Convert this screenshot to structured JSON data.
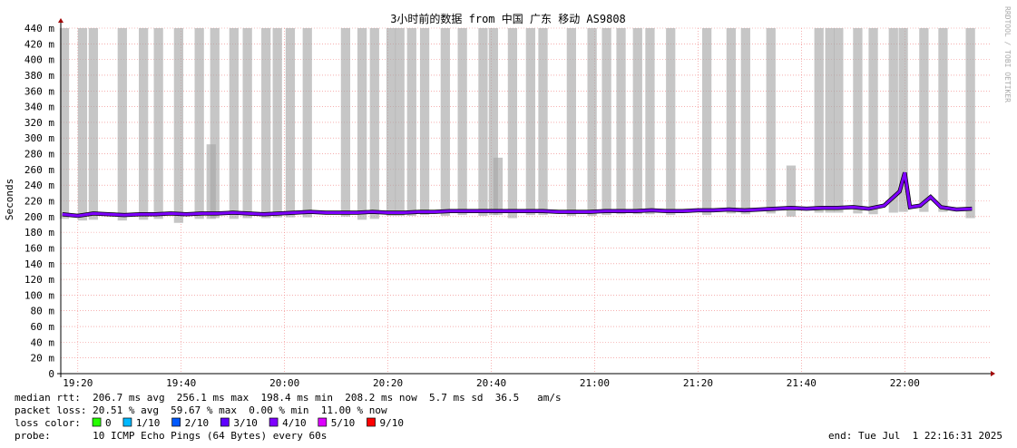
{
  "chart_data": {
    "type": "smokeping",
    "title": "3小时前的数据 from 中国 广东 移动 AS9808",
    "y_label": "Seconds",
    "watermark": "RRDTOOL / TOBI OETIKER",
    "xlim": [
      1156.7,
      1336.8
    ],
    "xticks": [
      {
        "value": 1160,
        "label": "19:20"
      },
      {
        "value": 1180,
        "label": "19:40"
      },
      {
        "value": 1200,
        "label": "20:00"
      },
      {
        "value": 1220,
        "label": "20:20"
      },
      {
        "value": 1240,
        "label": "20:40"
      },
      {
        "value": 1260,
        "label": "21:00"
      },
      {
        "value": 1280,
        "label": "21:20"
      },
      {
        "value": 1300,
        "label": "21:40"
      },
      {
        "value": 1320,
        "label": "22:00"
      }
    ],
    "ylim": [
      0,
      440
    ],
    "yticks": [
      0,
      {
        "value": 20,
        "label": "20 m"
      },
      {
        "value": 40,
        "label": "40 m"
      },
      {
        "value": 60,
        "label": "60 m"
      },
      {
        "value": 80,
        "label": "80 m"
      },
      {
        "value": 100,
        "label": "100 m"
      },
      {
        "value": 120,
        "label": "120 m"
      },
      {
        "value": 140,
        "label": "140 m"
      },
      {
        "value": 160,
        "label": "160 m"
      },
      {
        "value": 180,
        "label": "180 m"
      },
      {
        "value": 200,
        "label": "200 m"
      },
      {
        "value": 220,
        "label": "220 m"
      },
      {
        "value": 240,
        "label": "240 m"
      },
      {
        "value": 260,
        "label": "260 m"
      },
      {
        "value": 280,
        "label": "280 m"
      },
      {
        "value": 300,
        "label": "300 m"
      },
      {
        "value": 320,
        "label": "320 m"
      },
      {
        "value": 340,
        "label": "340 m"
      },
      {
        "value": 360,
        "label": "360 m"
      },
      {
        "value": 380,
        "label": "380 m"
      },
      {
        "value": 400,
        "label": "400 m"
      },
      {
        "value": 420,
        "label": "420 m"
      },
      {
        "value": 440,
        "label": "440 m"
      }
    ],
    "grid": true,
    "smoke": {
      "color": "#a8a8a8",
      "items": [
        {
          "x": 1157.4,
          "low": 197,
          "high": 440
        },
        {
          "x": 1160.9,
          "low": 195,
          "high": 440
        },
        {
          "x": 1163.0,
          "low": 196,
          "high": 440
        },
        {
          "x": 1168.6,
          "low": 195,
          "high": 440
        },
        {
          "x": 1172.7,
          "low": 196,
          "high": 440
        },
        {
          "x": 1175.6,
          "low": 197,
          "high": 440
        },
        {
          "x": 1179.5,
          "low": 192,
          "high": 440
        },
        {
          "x": 1183.5,
          "low": 197,
          "high": 440
        },
        {
          "x": 1185.8,
          "low": 197,
          "high": 292
        },
        {
          "x": 1186.5,
          "low": 198,
          "high": 440
        },
        {
          "x": 1190.2,
          "low": 197,
          "high": 440
        },
        {
          "x": 1192.8,
          "low": 198,
          "high": 440
        },
        {
          "x": 1196.4,
          "low": 198,
          "high": 440
        },
        {
          "x": 1198.6,
          "low": 199,
          "high": 440
        },
        {
          "x": 1201.1,
          "low": 199,
          "high": 440
        },
        {
          "x": 1204.4,
          "low": 199,
          "high": 440
        },
        {
          "x": 1211.8,
          "low": 200,
          "high": 440
        },
        {
          "x": 1215.0,
          "low": 196,
          "high": 440
        },
        {
          "x": 1217.4,
          "low": 197,
          "high": 440
        },
        {
          "x": 1220.6,
          "low": 201,
          "high": 440
        },
        {
          "x": 1222.3,
          "low": 201,
          "high": 440
        },
        {
          "x": 1224.6,
          "low": 201,
          "high": 440
        },
        {
          "x": 1227.1,
          "low": 202,
          "high": 440
        },
        {
          "x": 1231.1,
          "low": 201,
          "high": 440
        },
        {
          "x": 1234.4,
          "low": 202,
          "high": 440
        },
        {
          "x": 1238.4,
          "low": 201,
          "high": 440
        },
        {
          "x": 1240.4,
          "low": 202,
          "high": 440
        },
        {
          "x": 1241.3,
          "low": 202,
          "high": 275
        },
        {
          "x": 1244.1,
          "low": 198,
          "high": 440
        },
        {
          "x": 1247.6,
          "low": 202,
          "high": 440
        },
        {
          "x": 1250.0,
          "low": 202,
          "high": 440
        },
        {
          "x": 1255.5,
          "low": 201,
          "high": 440
        },
        {
          "x": 1259.5,
          "low": 201,
          "high": 440
        },
        {
          "x": 1262.3,
          "low": 202,
          "high": 440
        },
        {
          "x": 1265.1,
          "low": 203,
          "high": 440
        },
        {
          "x": 1268.3,
          "low": 203,
          "high": 440
        },
        {
          "x": 1270.7,
          "low": 203,
          "high": 440
        },
        {
          "x": 1274.7,
          "low": 202,
          "high": 440
        },
        {
          "x": 1281.7,
          "low": 202,
          "high": 440
        },
        {
          "x": 1286.4,
          "low": 204,
          "high": 440
        },
        {
          "x": 1289.2,
          "low": 203,
          "high": 440
        },
        {
          "x": 1294.1,
          "low": 204,
          "high": 440
        },
        {
          "x": 1298.0,
          "low": 200,
          "high": 265
        },
        {
          "x": 1303.4,
          "low": 205,
          "high": 440
        },
        {
          "x": 1305.5,
          "low": 205,
          "high": 440
        },
        {
          "x": 1307.2,
          "low": 205,
          "high": 440
        },
        {
          "x": 1310.9,
          "low": 204,
          "high": 440
        },
        {
          "x": 1313.9,
          "low": 203,
          "high": 440
        },
        {
          "x": 1317.8,
          "low": 205,
          "high": 440
        },
        {
          "x": 1319.7,
          "low": 206,
          "high": 440
        },
        {
          "x": 1323.7,
          "low": 206,
          "high": 440
        },
        {
          "x": 1327.4,
          "low": 206,
          "high": 440
        },
        {
          "x": 1332.7,
          "low": 198,
          "high": 440
        }
      ]
    },
    "series": [
      {
        "color": "#7e00ff",
        "x": [
          1157,
          1160,
          1163,
          1166,
          1169,
          1172,
          1175,
          1178,
          1181,
          1184,
          1187,
          1190,
          1193,
          1196,
          1199,
          1202,
          1205,
          1208,
          1211,
          1214,
          1217,
          1220,
          1223,
          1226,
          1229,
          1232,
          1235,
          1238,
          1241,
          1244,
          1247,
          1250,
          1253,
          1256,
          1259,
          1262,
          1265,
          1268,
          1271,
          1274,
          1277,
          1280,
          1283,
          1286,
          1289,
          1292,
          1295,
          1298,
          1301,
          1304,
          1307,
          1310,
          1313,
          1316,
          1319,
          1320,
          1321,
          1323,
          1325,
          1327,
          1330,
          1333
        ],
        "values": [
          203,
          201,
          204,
          203,
          202,
          203,
          203,
          204,
          203,
          204,
          204,
          205,
          204,
          203,
          204,
          205,
          206,
          205,
          205,
          205,
          206,
          205,
          205,
          206,
          206,
          207,
          207,
          207,
          207,
          207,
          207,
          207,
          206,
          206,
          206,
          207,
          207,
          207,
          208,
          207,
          207,
          208,
          208,
          209,
          208,
          209,
          210,
          211,
          210,
          211,
          211,
          212,
          210,
          214,
          232,
          256,
          212,
          214,
          225,
          212,
          209,
          210
        ]
      }
    ],
    "legend": {
      "label": "loss color:",
      "items": [
        {
          "name": "0",
          "color": "#26ff00"
        },
        {
          "name": "1/10",
          "color": "#00b8ff"
        },
        {
          "name": "2/10",
          "color": "#0059ff"
        },
        {
          "name": "3/10",
          "color": "#5e00ff"
        },
        {
          "name": "4/10",
          "color": "#7e00ff"
        },
        {
          "name": "5/10",
          "color": "#dd00ff"
        },
        {
          "name": "9/10",
          "color": "#ff0000"
        }
      ]
    },
    "stats": [
      "median rtt:  206.7 ms avg  256.1 ms max  198.4 ms min  208.2 ms now  5.7 ms sd  36.5   am/s",
      "packet loss: 20.51 % avg  59.67 % max  0.00 % min  11.00 % now"
    ],
    "probe": "probe:       10 ICMP Echo Pings (64 Bytes) every 60s",
    "end": "end: Tue Jul  1 22:16:31 2025"
  }
}
